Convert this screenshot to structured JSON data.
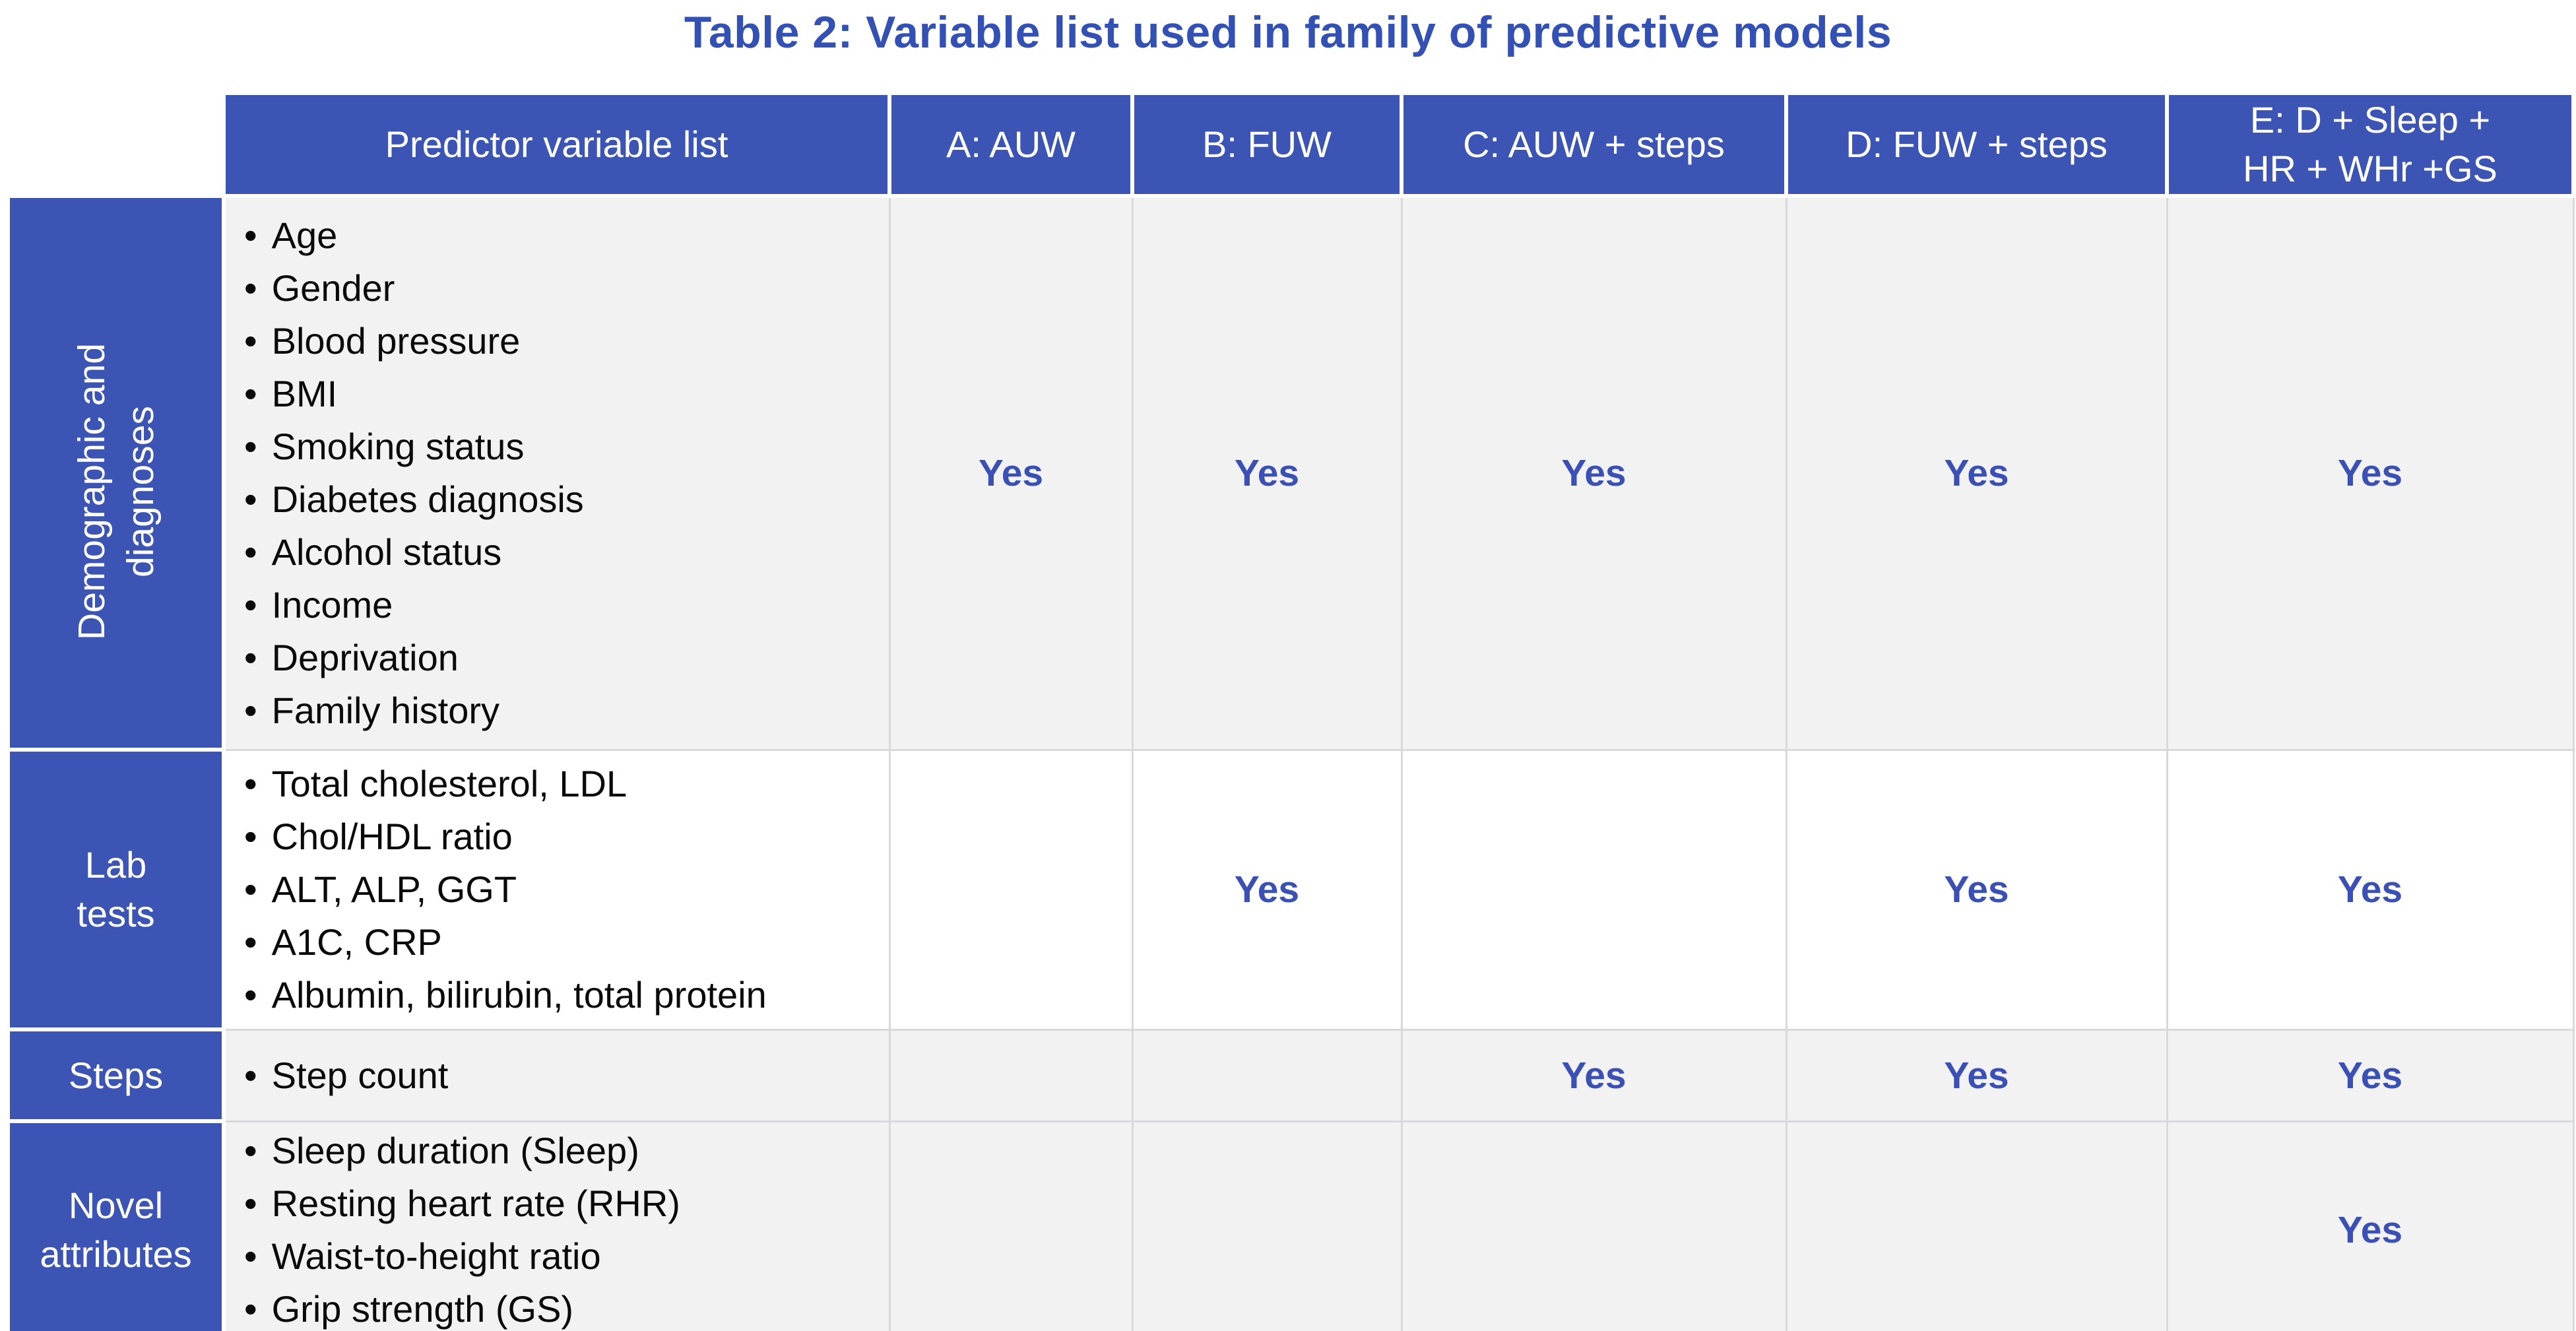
{
  "title": "Table 2: Variable list used in family of predictive models",
  "colors": {
    "title_blue": "#3350B4",
    "cell_blue": "#3C55B5",
    "yes_blue": "#3A50B4",
    "row_gray": "#F2F2F2",
    "row_white": "#FFFFFF",
    "grid_line": "#D9D9DC",
    "text_black": "#0A0A0A"
  },
  "table": {
    "header": {
      "predictor": "Predictor variable list",
      "models": [
        "A: AUW",
        "B: FUW",
        "C: AUW + steps",
        "D: FUW + steps",
        "E: D + Sleep +\nHR + WHr +GS"
      ]
    },
    "rows": [
      {
        "group": "Demographic and\ndiagnoses",
        "orientation": "vertical",
        "items": [
          "Age",
          "Gender",
          "Blood pressure",
          "BMI",
          "Smoking status",
          "Diabetes diagnosis",
          "Alcohol status",
          "Income",
          "Deprivation",
          "Family history"
        ],
        "flags": [
          "Yes",
          "Yes",
          "Yes",
          "Yes",
          "Yes"
        ]
      },
      {
        "group": "Lab\ntests",
        "orientation": "horizontal",
        "items": [
          "Total cholesterol, LDL",
          "Chol/HDL ratio",
          "ALT, ALP, GGT",
          "A1C, CRP",
          "Albumin, bilirubin, total protein"
        ],
        "flags": [
          "",
          "Yes",
          "",
          "Yes",
          "Yes"
        ]
      },
      {
        "group": "Steps",
        "orientation": "horizontal",
        "items": [
          "Step count"
        ],
        "flags": [
          "",
          "",
          "Yes",
          "Yes",
          "Yes"
        ]
      },
      {
        "group": "Novel\nattributes",
        "orientation": "horizontal",
        "items": [
          "Sleep duration (Sleep)",
          "Resting heart rate (RHR)",
          "Waist-to-height ratio",
          "Grip strength (GS)"
        ],
        "flags": [
          "",
          "",
          "",
          "",
          "Yes"
        ]
      }
    ]
  }
}
